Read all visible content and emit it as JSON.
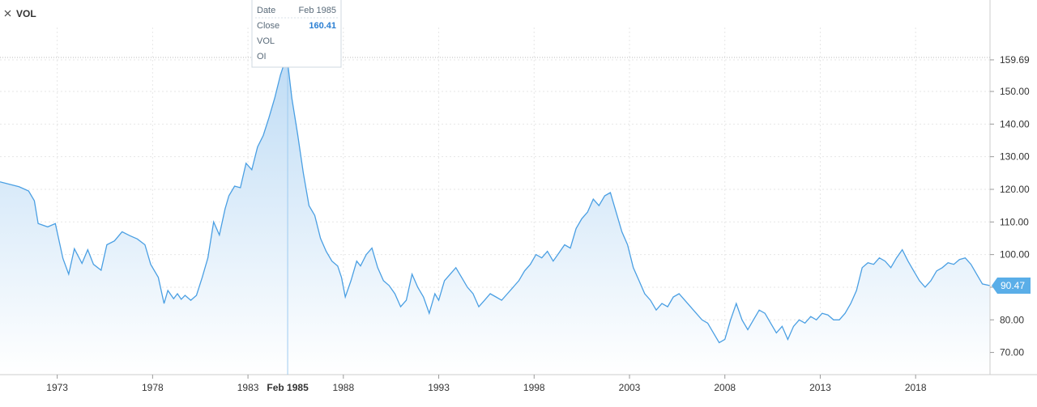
{
  "legend": {
    "symbol": "close-icon",
    "label": "VOL"
  },
  "tooltip": {
    "rows": [
      {
        "key": "Date",
        "value": "Feb 1985"
      },
      {
        "key": "Close",
        "value": "160.41"
      },
      {
        "key": "VOL",
        "value": ""
      },
      {
        "key": "OI",
        "value": ""
      }
    ]
  },
  "crosshair": {
    "date_label": "Feb 1985",
    "x": 1985.08,
    "y": 160.41
  },
  "last_value_label": "90.47",
  "colors": {
    "line": "#4a9fe3",
    "fill_top": "#bfdcf5",
    "fill_bottom": "#ffffff",
    "label_bg": "#5aaee8",
    "grid": "#e6e6e6"
  },
  "chart_data": {
    "type": "area",
    "title": "",
    "xlabel": "",
    "ylabel": "",
    "xlim": [
      1970.0,
      2021.9
    ],
    "ylim": [
      63.2,
      169.6
    ],
    "y_ticks": [
      "70.00",
      "80.00",
      "90.00",
      "100.00",
      "110.00",
      "120.00",
      "130.00",
      "140.00",
      "150.00",
      "159.69"
    ],
    "x_ticks": [
      "1973",
      "1978",
      "1983",
      "1988",
      "1993",
      "1998",
      "2003",
      "2008",
      "2013",
      "2018"
    ],
    "grid": true,
    "series": [
      {
        "x": [
          1970.0,
          1971.0,
          1971.5,
          1971.8,
          1972.0,
          1972.5,
          1972.9,
          1973.3,
          1973.6,
          1973.9,
          1974.3,
          1974.6,
          1974.9,
          1975.3,
          1975.6,
          1976.0,
          1976.4,
          1976.8,
          1977.2,
          1977.6,
          1977.9,
          1978.3,
          1978.6,
          1978.8,
          1979.1,
          1979.3,
          1979.5,
          1979.7,
          1980.0,
          1980.3,
          1980.6,
          1980.9,
          1981.2,
          1981.5,
          1981.8,
          1982.0,
          1982.3,
          1982.6,
          1982.9,
          1983.2,
          1983.5,
          1983.8,
          1984.1,
          1984.4,
          1984.7,
          1985.0,
          1985.1,
          1985.3,
          1985.6,
          1985.9,
          1986.2,
          1986.5,
          1986.8,
          1987.1,
          1987.4,
          1987.7,
          1987.9,
          1988.1,
          1988.4,
          1988.7,
          1988.9,
          1989.2,
          1989.5,
          1989.8,
          1990.1,
          1990.4,
          1990.7,
          1991.0,
          1991.3,
          1991.6,
          1991.9,
          1992.2,
          1992.5,
          1992.8,
          1993.0,
          1993.3,
          1993.6,
          1993.9,
          1994.2,
          1994.5,
          1994.8,
          1995.1,
          1995.4,
          1995.7,
          1996.0,
          1996.3,
          1996.6,
          1996.9,
          1997.2,
          1997.5,
          1997.8,
          1998.1,
          1998.4,
          1998.7,
          1999.0,
          1999.3,
          1999.6,
          1999.9,
          2000.2,
          2000.5,
          2000.8,
          2001.1,
          2001.4,
          2001.7,
          2002.0,
          2002.3,
          2002.6,
          2002.9,
          2003.2,
          2003.5,
          2003.8,
          2004.1,
          2004.4,
          2004.7,
          2005.0,
          2005.3,
          2005.6,
          2005.9,
          2006.2,
          2006.5,
          2006.8,
          2007.1,
          2007.4,
          2007.7,
          2008.0,
          2008.3,
          2008.6,
          2008.9,
          2009.2,
          2009.5,
          2009.8,
          2010.1,
          2010.4,
          2010.7,
          2011.0,
          2011.3,
          2011.6,
          2011.9,
          2012.2,
          2012.5,
          2012.8,
          2013.1,
          2013.4,
          2013.7,
          2014.0,
          2014.3,
          2014.6,
          2014.9,
          2015.2,
          2015.5,
          2015.8,
          2016.1,
          2016.4,
          2016.7,
          2017.0,
          2017.3,
          2017.6,
          2017.9,
          2018.2,
          2018.5,
          2018.8,
          2019.1,
          2019.4,
          2019.7,
          2020.0,
          2020.3,
          2020.6,
          2020.9,
          2021.2,
          2021.5,
          2021.9
        ],
        "values": [
          122.3,
          120.8,
          119.5,
          116.5,
          109.5,
          108.5,
          109.5,
          98.8,
          94.0,
          101.8,
          97.3,
          101.5,
          97.0,
          95.2,
          103.0,
          104.2,
          107.0,
          105.8,
          104.8,
          103.0,
          97.0,
          93.0,
          85.0,
          89.0,
          86.5,
          88.0,
          86.3,
          87.5,
          86.0,
          87.5,
          93.0,
          99.0,
          110.0,
          106.0,
          114.0,
          118.0,
          121.0,
          120.5,
          128.0,
          126.0,
          133.0,
          136.5,
          142.0,
          148.0,
          155.0,
          160.41,
          158.0,
          148.0,
          137.0,
          125.0,
          115.0,
          112.0,
          105.0,
          101.0,
          98.0,
          96.5,
          93.0,
          87.0,
          92.0,
          98.0,
          96.5,
          100.0,
          102.0,
          96.0,
          92.0,
          90.5,
          88.0,
          84.0,
          86.0,
          94.0,
          90.0,
          87.0,
          82.0,
          88.0,
          86.0,
          92.0,
          94.0,
          96.0,
          93.0,
          90.0,
          88.0,
          84.0,
          86.0,
          88.0,
          87.0,
          86.0,
          88.0,
          90.0,
          92.0,
          95.0,
          97.0,
          100.0,
          99.0,
          101.0,
          98.0,
          100.5,
          103.0,
          102.0,
          108.0,
          111.0,
          113.0,
          117.0,
          115.0,
          118.0,
          119.0,
          113.0,
          107.0,
          103.0,
          96.0,
          92.0,
          88.0,
          86.0,
          83.0,
          85.0,
          84.0,
          87.0,
          88.0,
          86.0,
          84.0,
          82.0,
          80.0,
          79.0,
          76.0,
          73.0,
          74.0,
          80.0,
          85.0,
          80.0,
          77.0,
          80.0,
          83.0,
          82.0,
          79.0,
          76.0,
          78.0,
          74.0,
          78.0,
          80.0,
          79.0,
          81.0,
          80.0,
          82.0,
          81.5,
          80.0,
          80.0,
          82.0,
          85.0,
          89.0,
          96.0,
          97.5,
          97.0,
          99.0,
          98.0,
          96.0,
          99.0,
          101.5,
          98.0,
          95.0,
          92.0,
          90.0,
          92.0,
          95.0,
          96.0,
          97.5,
          97.0,
          98.5,
          99.0,
          97.0,
          94.0,
          91.0,
          90.47
        ]
      }
    ]
  }
}
